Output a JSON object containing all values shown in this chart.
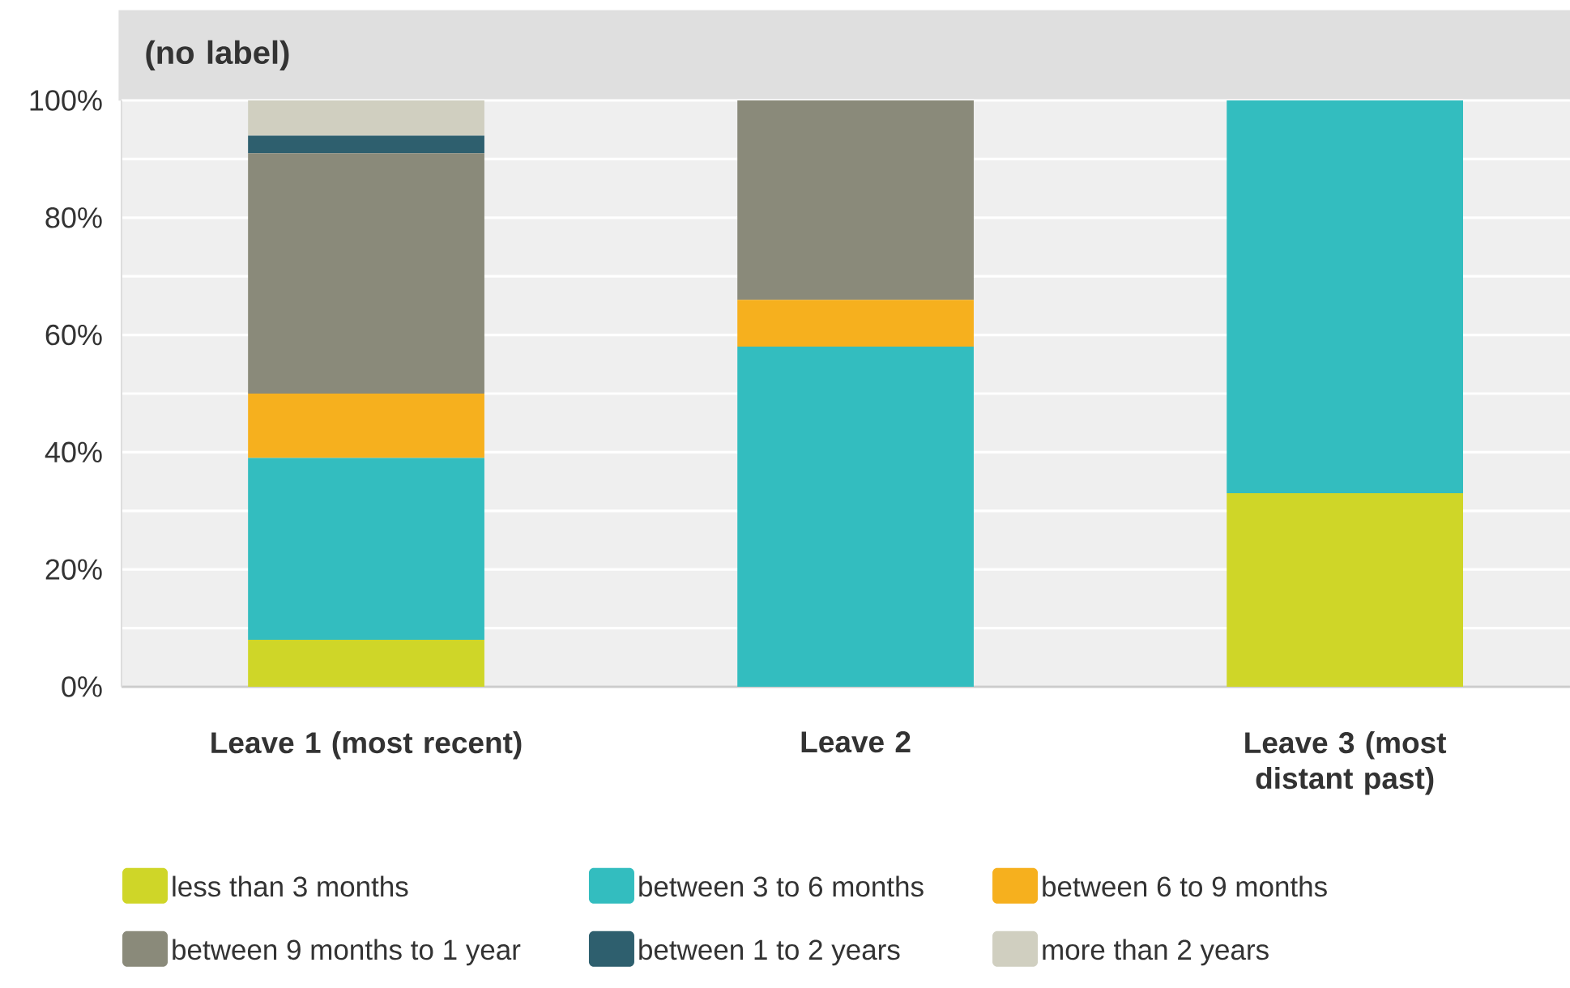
{
  "chart_data": {
    "type": "bar",
    "stacked": true,
    "title": "(no label)",
    "categories": [
      "Leave 1 (most recent)",
      "Leave 2",
      "Leave 3 (most distant past)"
    ],
    "series": [
      {
        "name": "less than 3 months",
        "color": "#cfd628",
        "values": [
          8,
          0,
          33
        ]
      },
      {
        "name": "between 3 to 6 months",
        "color": "#33bdbf",
        "values": [
          31,
          58,
          67
        ]
      },
      {
        "name": "between 6 to 9 months",
        "color": "#f6b01e",
        "values": [
          11,
          8,
          0
        ]
      },
      {
        "name": "between 9 months to 1 year",
        "color": "#8a8a7a",
        "values": [
          41,
          34,
          0
        ]
      },
      {
        "name": "between 1 to 2 years",
        "color": "#2e5f6e",
        "values": [
          3,
          0,
          0
        ]
      },
      {
        "name": "more than 2 years",
        "color": "#d0cfc0",
        "values": [
          6,
          0,
          0
        ]
      }
    ],
    "ylim": [
      0,
      100
    ],
    "yticks": [
      {
        "value": 0,
        "label": "0%"
      },
      {
        "value": 10,
        "label": null
      },
      {
        "value": 20,
        "label": "20%"
      },
      {
        "value": 30,
        "label": null
      },
      {
        "value": 40,
        "label": "40%"
      },
      {
        "value": 50,
        "label": null
      },
      {
        "value": 60,
        "label": "60%"
      },
      {
        "value": 70,
        "label": null
      },
      {
        "value": 80,
        "label": "80%"
      },
      {
        "value": 90,
        "label": null
      },
      {
        "value": 100,
        "label": "100%"
      }
    ],
    "grid": "y",
    "legend": "bottom"
  }
}
